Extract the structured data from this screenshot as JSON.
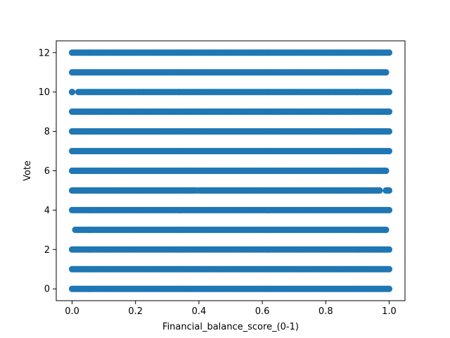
{
  "chart_data": {
    "type": "scatter",
    "title": "",
    "xlabel": "Financial_balance_score_(0-1)",
    "ylabel": "Vote",
    "ylabel_color": "#0000ff",
    "point_color": "#1f77b4",
    "xlim": [
      -0.05,
      1.05
    ],
    "ylim": [
      -0.6,
      12.6
    ],
    "x_ticks": [
      0.0,
      0.2,
      0.4,
      0.6,
      0.8,
      1.0
    ],
    "x_tick_labels": [
      "0.0",
      "0.2",
      "0.4",
      "0.6",
      "0.8",
      "1.0"
    ],
    "y_ticks": [
      0,
      2,
      4,
      6,
      8,
      10,
      12
    ],
    "y_tick_labels": [
      "0",
      "2",
      "4",
      "6",
      "8",
      "10",
      "12"
    ],
    "grid": false,
    "legend": "none",
    "series": [
      {
        "y_values": [
          0,
          1,
          2,
          3,
          4,
          5,
          6,
          7,
          8,
          9,
          10,
          11,
          12
        ],
        "x_range": [
          0.0,
          1.0
        ],
        "note_pattern": "dense bands of points spanning x from 0 to 1 at each integer vote"
      }
    ],
    "bands": [
      {
        "y": 0,
        "segments": [
          [
            0.0,
            1.0
          ]
        ]
      },
      {
        "y": 1,
        "segments": [
          [
            0.0,
            1.0
          ]
        ]
      },
      {
        "y": 2,
        "segments": [
          [
            0.0,
            1.0
          ]
        ]
      },
      {
        "y": 3,
        "segments": [
          [
            0.01,
            0.99
          ]
        ]
      },
      {
        "y": 4,
        "segments": [
          [
            0.0,
            1.0
          ]
        ]
      },
      {
        "y": 5,
        "segments": [
          [
            0.0,
            0.39
          ],
          [
            0.4,
            0.97
          ],
          [
            0.99,
            1.0
          ]
        ]
      },
      {
        "y": 6,
        "segments": [
          [
            0.0,
            0.99
          ]
        ]
      },
      {
        "y": 7,
        "segments": [
          [
            0.0,
            1.0
          ]
        ]
      },
      {
        "y": 8,
        "segments": [
          [
            0.0,
            1.0
          ]
        ]
      },
      {
        "y": 9,
        "segments": [
          [
            0.0,
            1.0
          ]
        ]
      },
      {
        "y": 10,
        "segments": [
          [
            0.0,
            0.0
          ],
          [
            0.02,
            1.0
          ]
        ]
      },
      {
        "y": 11,
        "segments": [
          [
            0.0,
            0.99
          ]
        ]
      },
      {
        "y": 12,
        "segments": [
          [
            0.0,
            1.0
          ]
        ]
      }
    ]
  }
}
